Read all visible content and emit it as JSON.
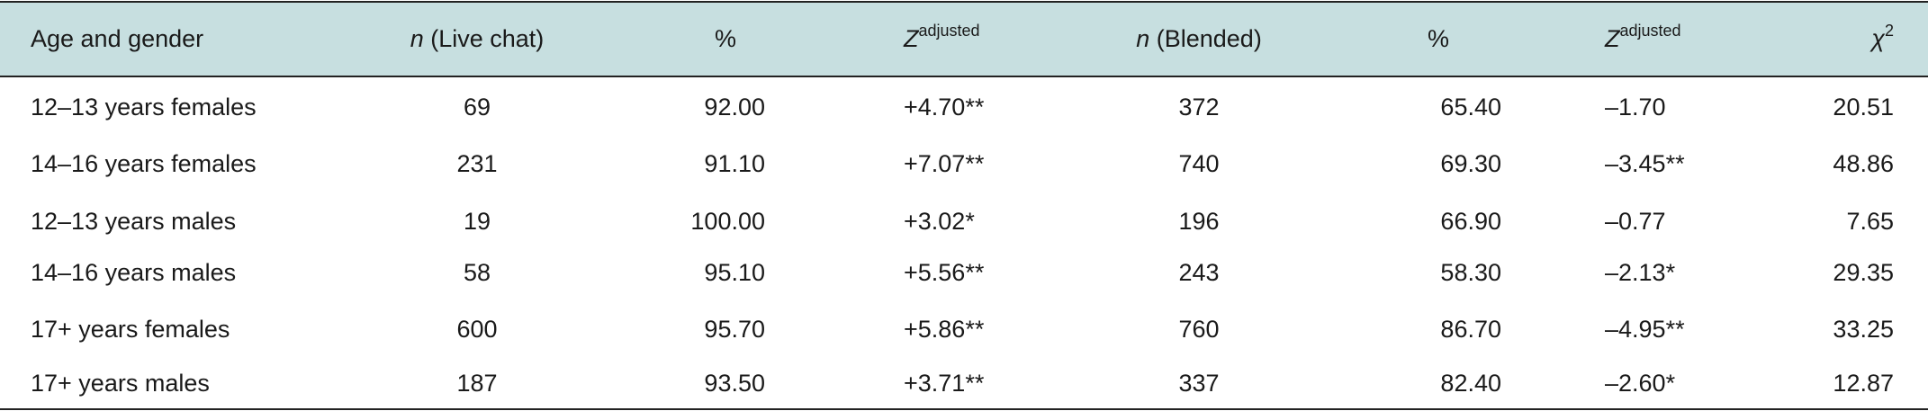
{
  "table": {
    "header": [
      {
        "text": "Age and gender"
      },
      {
        "italic": "n",
        "text": "(Live chat)"
      },
      {
        "text": "%"
      },
      {
        "italic": "Z",
        "sup": "adjusted"
      },
      {
        "italic": "n",
        "text": "(Blended)"
      },
      {
        "text": "%"
      },
      {
        "italic": "Z",
        "sup": "adjusted"
      },
      {
        "italic": "χ",
        "sup": "2"
      }
    ],
    "rows": [
      [
        "12–13 years females",
        "69",
        "92.00",
        "+4.70**",
        "372",
        "65.40",
        "–1.70",
        "20.51"
      ],
      [
        "14–16 years females",
        "231",
        "91.10",
        "+7.07**",
        "740",
        "69.30",
        "–3.45**",
        "48.86"
      ],
      [
        "12–13 years males",
        "19",
        "100.00",
        "+3.02*",
        "196",
        "66.90",
        "–0.77",
        "7.65"
      ],
      [
        "14–16 years males",
        "58",
        "95.10",
        "+5.56**",
        "243",
        "58.30",
        "–2.13*",
        "29.35"
      ],
      [
        "17+ years females",
        "600",
        "95.70",
        "+5.86**",
        "760",
        "86.70",
        "–4.95**",
        "33.25"
      ],
      [
        "17+ years males",
        "187",
        "93.50",
        "+3.71**",
        "337",
        "82.40",
        "–2.60*",
        "12.87"
      ]
    ]
  }
}
